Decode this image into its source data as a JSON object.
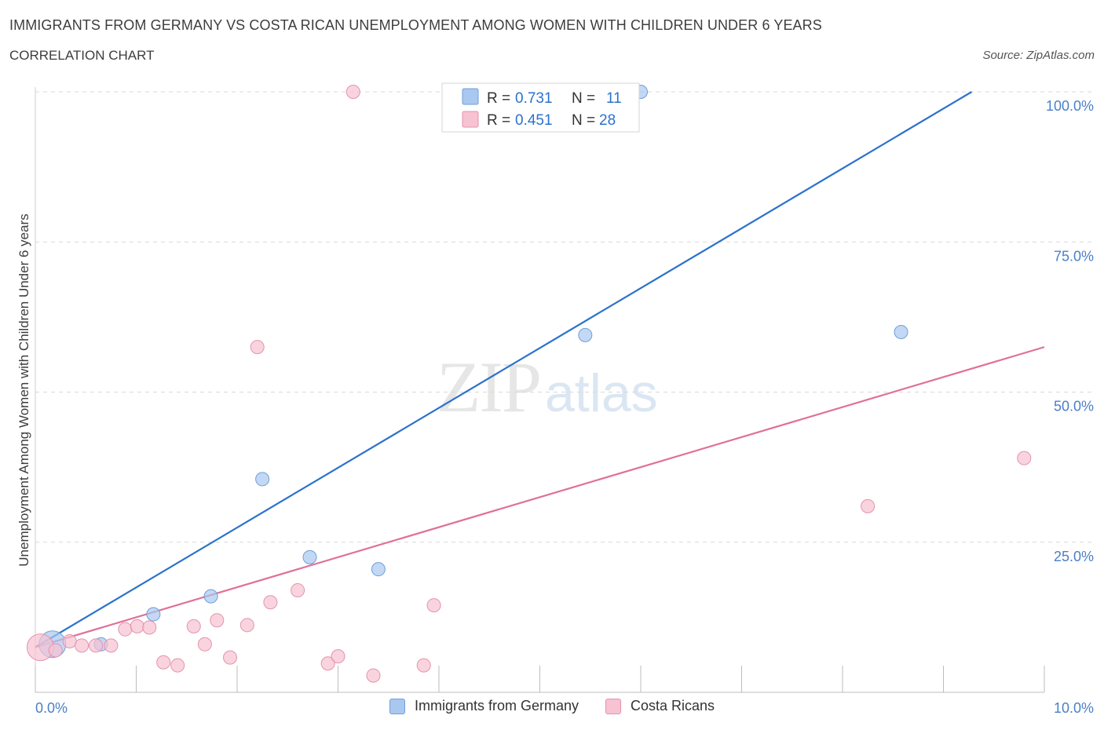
{
  "header": {
    "title": "IMMIGRANTS FROM GERMANY VS COSTA RICAN UNEMPLOYMENT AMONG WOMEN WITH CHILDREN UNDER 6 YEARS",
    "subtitle": "CORRELATION CHART",
    "source": "Source: ZipAtlas.com"
  },
  "watermark": {
    "zip": "ZIP",
    "atlas": "atlas"
  },
  "colors": {
    "germany_fill": "#a9c8f0",
    "germany_stroke": "#6f9fd8",
    "germany_line": "#2b72cc",
    "costa_fill": "#f7c2d2",
    "costa_stroke": "#e592ad",
    "costa_line": "#e0709a",
    "tick_label": "#4a7fc9",
    "grid": "#d9d9d9"
  },
  "legend": {
    "rows": [
      {
        "r_label": "R = ",
        "r_value": "0.731",
        "n_label": "N = ",
        "n_value": "11"
      },
      {
        "r_label": "R = ",
        "r_value": "0.451",
        "n_label": "N = ",
        "n_value": "28"
      }
    ]
  },
  "chart_data": {
    "type": "scatter",
    "title": "IMMIGRANTS FROM GERMANY VS COSTA RICAN UNEMPLOYMENT AMONG WOMEN WITH CHILDREN UNDER 6 YEARS",
    "xlabel": "",
    "ylabel": "Unemployment Among Women with Children Under 6 years",
    "xlim": [
      0,
      10
    ],
    "ylim": [
      0,
      100
    ],
    "x_tick_labels": [
      "0.0%",
      "10.0%"
    ],
    "y_ticks": [
      25,
      50,
      75,
      100
    ],
    "y_tick_labels": [
      "25.0%",
      "50.0%",
      "75.0%",
      "100.0%"
    ],
    "grid": true,
    "legend_position": "top-center",
    "series": [
      {
        "name": "Immigrants from Germany",
        "color": "#a9c8f0",
        "r": 0.731,
        "n": 11,
        "points": [
          {
            "x": 0.17,
            "y": 8.0,
            "size": "large"
          },
          {
            "x": 0.65,
            "y": 8.0
          },
          {
            "x": 1.17,
            "y": 13.0
          },
          {
            "x": 1.74,
            "y": 16.0
          },
          {
            "x": 2.25,
            "y": 35.5
          },
          {
            "x": 2.72,
            "y": 22.5
          },
          {
            "x": 3.4,
            "y": 20.5
          },
          {
            "x": 4.2,
            "y": 100.0
          },
          {
            "x": 5.45,
            "y": 59.5
          },
          {
            "x": 6.0,
            "y": 100.0
          },
          {
            "x": 8.58,
            "y": 60.0
          }
        ],
        "trendline": {
          "x": [
            0,
            9.28
          ],
          "y": [
            7.5,
            100
          ]
        }
      },
      {
        "name": "Costa Ricans",
        "color": "#f7c2d2",
        "r": 0.451,
        "n": 28,
        "points": [
          {
            "x": 0.05,
            "y": 7.5,
            "size": "large"
          },
          {
            "x": 0.2,
            "y": 7.0
          },
          {
            "x": 0.34,
            "y": 8.5
          },
          {
            "x": 0.46,
            "y": 7.8
          },
          {
            "x": 0.6,
            "y": 7.8
          },
          {
            "x": 0.75,
            "y": 7.8
          },
          {
            "x": 0.89,
            "y": 10.5
          },
          {
            "x": 1.01,
            "y": 11.0
          },
          {
            "x": 1.13,
            "y": 10.8
          },
          {
            "x": 1.27,
            "y": 5.0
          },
          {
            "x": 1.41,
            "y": 4.5
          },
          {
            "x": 1.57,
            "y": 11.0
          },
          {
            "x": 1.68,
            "y": 8.0
          },
          {
            "x": 1.8,
            "y": 12.0
          },
          {
            "x": 1.93,
            "y": 5.8
          },
          {
            "x": 2.1,
            "y": 11.2
          },
          {
            "x": 2.2,
            "y": 57.5
          },
          {
            "x": 2.33,
            "y": 15.0
          },
          {
            "x": 2.6,
            "y": 17.0
          },
          {
            "x": 2.9,
            "y": 4.8
          },
          {
            "x": 3.0,
            "y": 6.0
          },
          {
            "x": 3.15,
            "y": 100.0
          },
          {
            "x": 3.35,
            "y": 2.8
          },
          {
            "x": 3.85,
            "y": 4.5
          },
          {
            "x": 3.95,
            "y": 14.5
          },
          {
            "x": 5.4,
            "y": 100.0
          },
          {
            "x": 8.25,
            "y": 31.0
          },
          {
            "x": 9.8,
            "y": 39.0
          }
        ],
        "trendline": {
          "x": [
            0,
            10
          ],
          "y": [
            7.5,
            57.5
          ]
        }
      }
    ]
  }
}
